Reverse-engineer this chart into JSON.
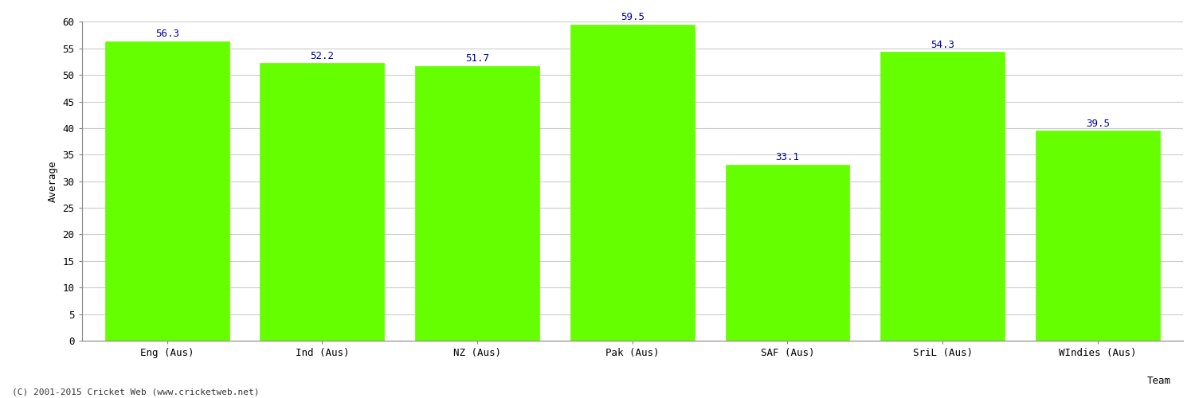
{
  "categories": [
    "Eng (Aus)",
    "Ind (Aus)",
    "NZ (Aus)",
    "Pak (Aus)",
    "SAF (Aus)",
    "SriL (Aus)",
    "WIndies (Aus)"
  ],
  "values": [
    56.3,
    52.2,
    51.7,
    59.5,
    33.1,
    54.3,
    39.5
  ],
  "bar_color": "#66ff00",
  "bar_edge_color": "#66ff00",
  "value_color": "#000099",
  "ylabel": "Average",
  "xlabel": "Team",
  "ylim": [
    0,
    60
  ],
  "yticks": [
    0,
    5,
    10,
    15,
    20,
    25,
    30,
    35,
    40,
    45,
    50,
    55,
    60
  ],
  "grid_color": "#cccccc",
  "bg_color": "#ffffff",
  "footer": "(C) 2001-2015 Cricket Web (www.cricketweb.net)",
  "value_fontsize": 9,
  "axis_label_fontsize": 9,
  "tick_fontsize": 9,
  "footer_fontsize": 8
}
